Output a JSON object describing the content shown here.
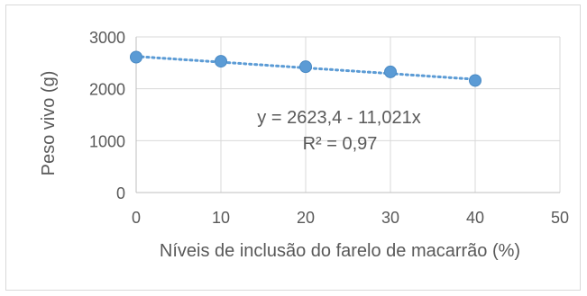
{
  "chart_data": {
    "type": "scatter",
    "title": "",
    "xlabel": "Níveis de inclusão do farelo de macarrão (%)",
    "ylabel": "Peso vivo (g)",
    "xlim": [
      0,
      50
    ],
    "ylim": [
      0,
      3000
    ],
    "x_ticks": [
      "0",
      "10",
      "20",
      "30",
      "40",
      "50"
    ],
    "y_ticks": [
      "0",
      "1000",
      "2000",
      "3000"
    ],
    "grid": "vertical and horizontal major gridlines",
    "series": [
      {
        "x": [
          0,
          10,
          20,
          30,
          40
        ],
        "y": [
          2610,
          2530,
          2425,
          2325,
          2160
        ],
        "marker_color": "#5b9bd5"
      }
    ],
    "trendline": {
      "style": "dotted linear",
      "color": "#5b9bd5",
      "intercept": 2623.4,
      "slope": -11.021,
      "x_range": [
        0,
        40
      ]
    },
    "annotations": {
      "equation": "y = 2623,4 - 11,021x",
      "r_squared": "R² = 0,97"
    }
  }
}
